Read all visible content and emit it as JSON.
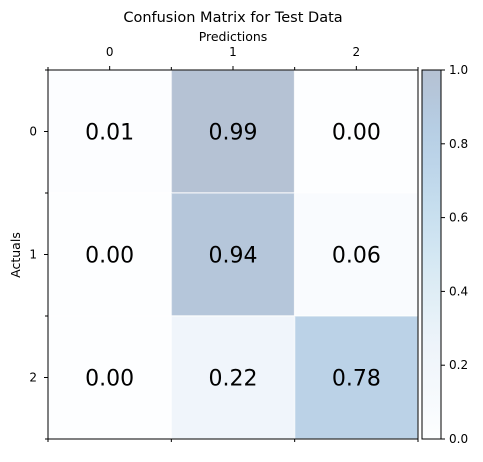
{
  "chart_data": {
    "type": "heatmap",
    "title": "Confusion Matrix for Test Data",
    "xlabel": "Predictions",
    "ylabel": "Actuals",
    "x_categories": [
      "0",
      "1",
      "2"
    ],
    "y_categories": [
      "0",
      "1",
      "2"
    ],
    "values": [
      [
        0.01,
        0.99,
        0.0
      ],
      [
        0.0,
        0.94,
        0.06
      ],
      [
        0.0,
        0.22,
        0.78
      ]
    ],
    "cell_labels": [
      [
        "0.01",
        "0.99",
        "0.00"
      ],
      [
        "0.00",
        "0.94",
        "0.06"
      ],
      [
        "0.00",
        "0.22",
        "0.78"
      ]
    ],
    "x_axis_position": "top",
    "colorbar": {
      "range": [
        0.0,
        1.0
      ],
      "ticks": [
        0.0,
        0.2,
        0.4,
        0.6,
        0.8,
        1.0
      ],
      "tick_labels": [
        "0.0",
        "0.2",
        "0.4",
        "0.6",
        "0.8",
        "1.0"
      ],
      "placement": "right"
    },
    "colormap": "Blues",
    "alpha": 0.3,
    "grid": false
  }
}
